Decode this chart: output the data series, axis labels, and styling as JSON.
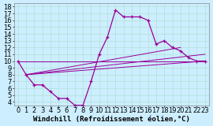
{
  "xlabel": "Windchill (Refroidissement éolien,°C)",
  "bg_color": "#cceeff",
  "line_color": "#990099",
  "xlim": [
    -0.5,
    23.5
  ],
  "ylim": [
    3.5,
    18.5
  ],
  "ytick_min": 4,
  "ytick_max": 18,
  "xtick_min": 0,
  "xtick_max": 23,
  "main_curve_x": [
    0,
    1,
    2,
    3,
    4,
    5,
    6,
    7,
    8,
    9,
    10,
    11,
    12,
    13,
    14,
    15,
    16,
    17,
    18,
    19,
    20,
    21,
    22,
    23
  ],
  "main_curve_y": [
    10,
    8,
    6.5,
    6.5,
    5.5,
    4.5,
    4.5,
    3.5,
    3.5,
    7,
    11,
    13.5,
    17.5,
    16.5,
    16.5,
    16.5,
    16,
    12.5,
    13,
    12,
    11.5,
    10.5,
    10,
    10
  ],
  "line1_x": [
    0,
    23
  ],
  "line1_y": [
    10,
    10
  ],
  "line2_x": [
    1,
    23
  ],
  "line2_y": [
    8,
    11.0
  ],
  "line3_x": [
    1,
    23
  ],
  "line3_y": [
    8,
    10.0
  ],
  "line4_x": [
    1,
    20
  ],
  "line4_y": [
    8,
    12.0
  ],
  "grid_color": "#aaddcc",
  "font_size": 6.5
}
